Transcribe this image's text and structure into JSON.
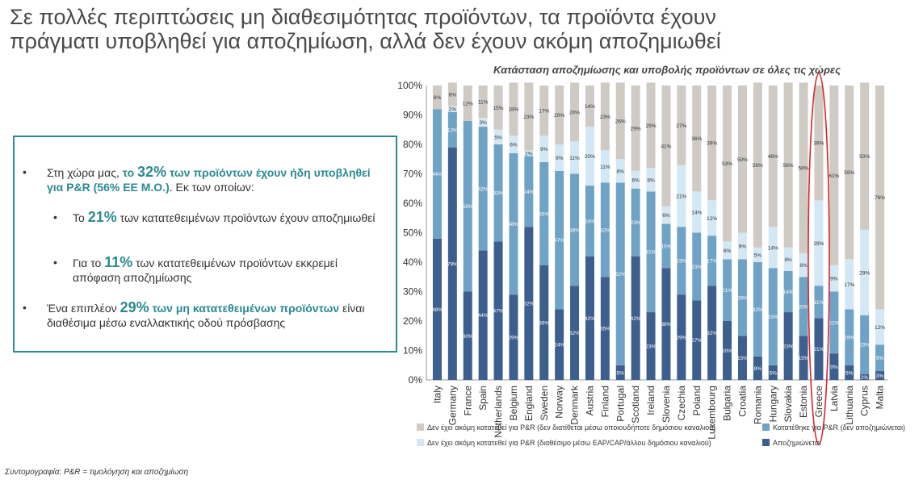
{
  "title_line1": "Σε πολλές περιπτώσεις μη διαθεσιμότητας προϊόντων, τα προϊόντα έχουν",
  "title_line2": "πράγματι υποβληθεί για αποζημίωση, αλλά δεν έχουν ακόμη αποζημιωθεί",
  "box": {
    "bullet": "•",
    "b1_pre": "Στη χώρα μας, ",
    "b1_hl1": "το ",
    "b1_big": "32%",
    "b1_hl2": " των προϊόντων έχουν ήδη υποβληθεί για P&R (56% ΕΕ Μ.Ο.)",
    "b1_post": ". Εκ των οποίων:",
    "b2_pre": "Το ",
    "b2_big": "21%",
    "b2_post": " των κατατεθειμένων προϊόντων έχουν αποζημιωθεί",
    "b3_pre": "Για το ",
    "b3_big": "11%",
    "b3_post": " των κατατεθειμένων προϊόντων εκκρεμεί απόφαση αποζημίωσης",
    "b4_pre": "Ένα επιπλέον ",
    "b4_big": "29%",
    "b4_hl": " των μη κατατεθειμένων προϊόντων",
    "b4_post": " είναι διαθέσιμα μέσω εναλλακτικής οδού πρόσβασης"
  },
  "footnote": "Συντομογραφία: P&R = τιμολόγηση και αποζημίωση",
  "chart_data": {
    "type": "bar",
    "stacked": true,
    "title": "Κατάσταση αποζημίωσης και υποβολής προϊόντων σε όλες τις χώρες",
    "ylim": [
      0,
      100
    ],
    "yticks": [
      "0%",
      "10%",
      "20%",
      "30%",
      "40%",
      "50%",
      "60%",
      "70%",
      "80%",
      "90%",
      "100%"
    ],
    "highlight": "Greece",
    "categories": [
      "Italy",
      "Germany",
      "France",
      "Spain",
      "Netherlands",
      "Belgium",
      "England",
      "Sweden",
      "Norway",
      "Denmark",
      "Austria",
      "Finland",
      "Portugal",
      "Scotland",
      "Ireland",
      "Slovenia",
      "Czechia",
      "Poland",
      "Luxembourg",
      "Bulgaria",
      "Croatia",
      "Romania",
      "Hungary",
      "Slovakia",
      "Estonia",
      "Greece",
      "Latvia",
      "Lithuania",
      "Cyprus",
      "Malta"
    ],
    "series": [
      {
        "name": "Αποζημιώνεται",
        "color": "#3d5f8e",
        "values": [
          48,
          79,
          30,
          44,
          47,
          29,
          52,
          39,
          24,
          32,
          42,
          35,
          5,
          42,
          23,
          38,
          29,
          27,
          32,
          20,
          15,
          8,
          5,
          23,
          15,
          21,
          9,
          5,
          2,
          3
        ]
      },
      {
        "name": "Κατατέθηκε για P&R (δεν αποζημιώνεται)",
        "color": "#6fa3c6",
        "values": [
          44,
          12,
          58,
          42,
          33,
          48,
          24,
          35,
          47,
          38,
          24,
          32,
          62,
          23,
          41,
          15,
          23,
          23,
          17,
          21,
          26,
          32,
          33,
          14,
          20,
          11,
          21,
          19,
          20,
          9
        ]
      },
      {
        "name": "Δεν έχει ακόμη κατατεθεί για P&R (διαθέσιμο μέσω EAP/CAP/άλλου δημόσιου καναλιού)",
        "color": "#d3e8f4",
        "values": [
          0,
          2,
          0,
          3,
          5,
          6,
          2,
          9,
          9,
          11,
          20,
          11,
          8,
          6,
          8,
          6,
          21,
          14,
          12,
          6,
          9,
          5,
          14,
          8,
          8,
          29,
          9,
          17,
          29,
          12
        ]
      },
      {
        "name": "Δεν έχει ακόμη κατατεθεί για P&R (δεν διατίθεται μέσω οποιουδήποτε δημόσιου καναλιού)",
        "color": "#cfcac4",
        "values": [
          8,
          8,
          12,
          11,
          15,
          18,
          23,
          17,
          20,
          20,
          14,
          23,
          26,
          29,
          29,
          41,
          27,
          36,
          39,
          53,
          50,
          56,
          48,
          56,
          58,
          39,
          61,
          59,
          50,
          76
        ]
      }
    ],
    "legend": [
      {
        "label": "Δεν έχει ακόμη κατατεθεί για P&R (δεν διατίθεται μέσω οποιουδήποτε δημόσιου καναλιού)",
        "color": "#cfcac4"
      },
      {
        "label": "Κατατέθηκε για P&R (δεν αποζημιώνεται)",
        "color": "#6fa3c6"
      },
      {
        "label": "Δεν έχει ακόμη κατατεθεί για P&R (διαθέσιμο μέσω EAP/CAP/άλλου δημόσιου καναλιού)",
        "color": "#d3e8f4"
      },
      {
        "label": "Αποζημιώνεται",
        "color": "#3d5f8e"
      }
    ]
  }
}
